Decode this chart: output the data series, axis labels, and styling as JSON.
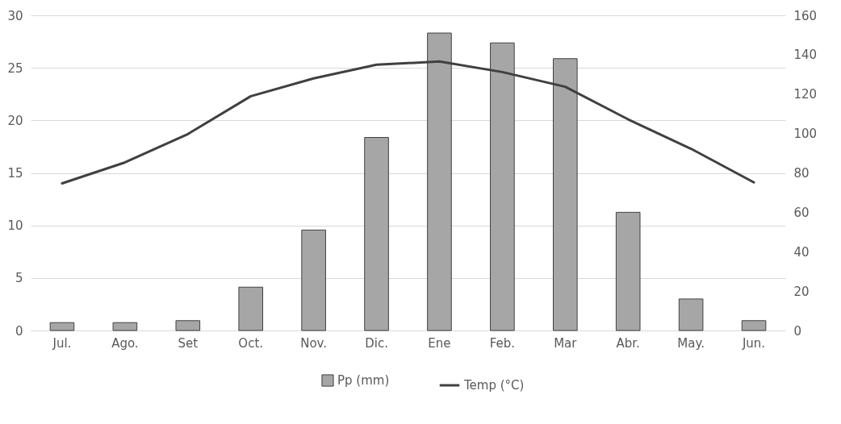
{
  "chart_data": {
    "type": "bar",
    "categories": [
      "Jul.",
      "Ago.",
      "Set",
      "Oct.",
      "Nov.",
      "Dic.",
      "Ene",
      "Feb.",
      "Mar",
      "Abr.",
      "May.",
      "Jun."
    ],
    "series": [
      {
        "name": "Pp (mm)",
        "axis": "y2",
        "color": "#a6a6a6",
        "values": [
          4,
          4,
          5,
          22,
          51,
          98,
          151,
          146,
          138,
          60,
          16,
          5
        ]
      },
      {
        "name": "Temp (°C)",
        "type": "line",
        "axis": "y",
        "color": "#404040",
        "values": [
          14.0,
          16.0,
          18.7,
          22.3,
          24.0,
          25.3,
          25.6,
          24.6,
          23.2,
          20.1,
          17.3,
          14.1
        ]
      }
    ],
    "ylim": [
      0,
      30
    ],
    "yticks": [
      0,
      5,
      10,
      15,
      20,
      25,
      30
    ],
    "y2lim": [
      0,
      160
    ],
    "y2ticks": [
      0,
      20,
      40,
      60,
      80,
      100,
      120,
      140,
      160
    ],
    "grid": "y",
    "legend": "bottom"
  }
}
